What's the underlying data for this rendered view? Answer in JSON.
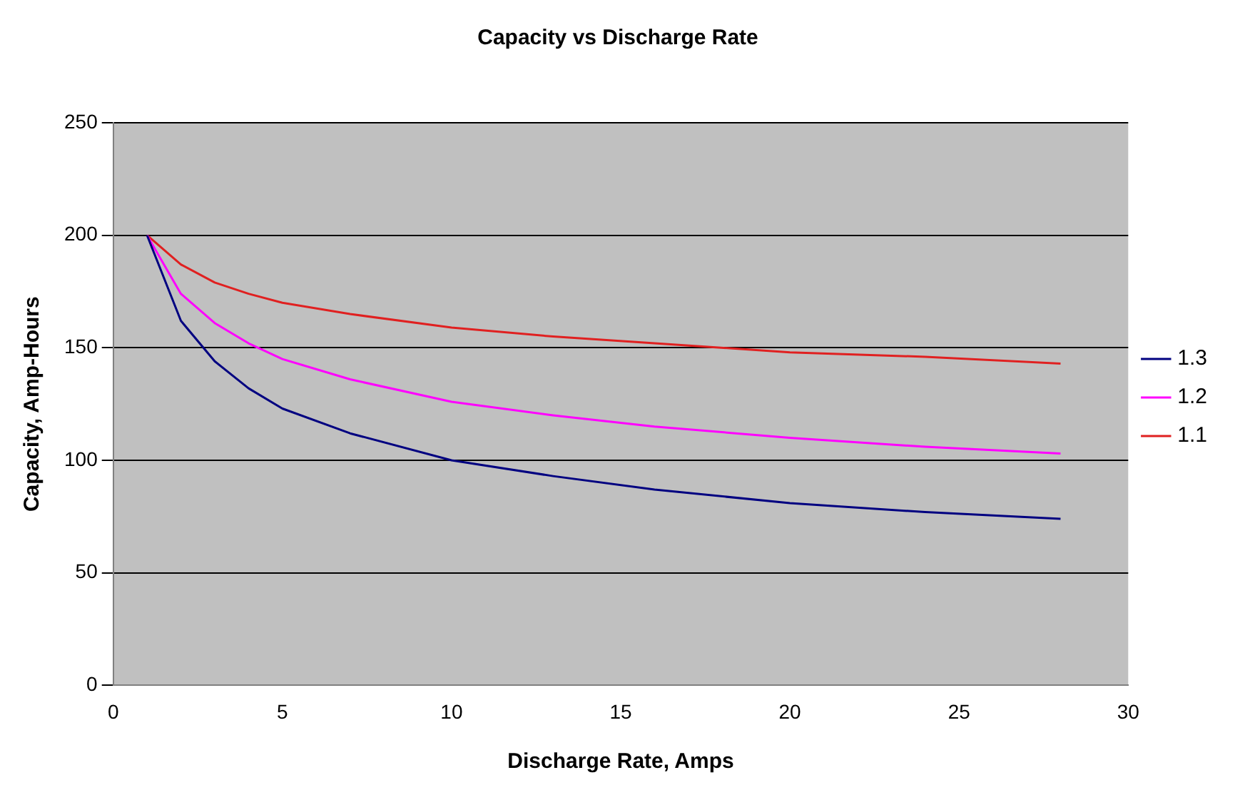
{
  "chart_data": {
    "type": "line",
    "title": "Capacity vs Discharge Rate",
    "xlabel": "Discharge Rate, Amps",
    "ylabel": "Capacity, Amp-Hours",
    "x": [
      1,
      2,
      3,
      4,
      5,
      7,
      10,
      13,
      16,
      20,
      24,
      28
    ],
    "series": [
      {
        "name": "1.3",
        "color": "#000080",
        "values": [
          200,
          162,
          144,
          132,
          123,
          112,
          100,
          93,
          87,
          81,
          77,
          74
        ]
      },
      {
        "name": "1.2",
        "color": "#ff00ff",
        "values": [
          200,
          174,
          161,
          152,
          145,
          136,
          126,
          120,
          115,
          110,
          106,
          103
        ]
      },
      {
        "name": "1.1",
        "color": "#e02020",
        "values": [
          200,
          187,
          179,
          174,
          170,
          165,
          159,
          155,
          152,
          148,
          146,
          143
        ]
      }
    ],
    "xlim": [
      0,
      30
    ],
    "xticks": [
      0,
      5,
      10,
      15,
      20,
      25,
      30
    ],
    "ylim": [
      0,
      250
    ],
    "yticks": [
      0,
      50,
      100,
      150,
      200,
      250
    ],
    "grid": "y",
    "legend": "right",
    "marker": "none",
    "line_style": "solid"
  }
}
